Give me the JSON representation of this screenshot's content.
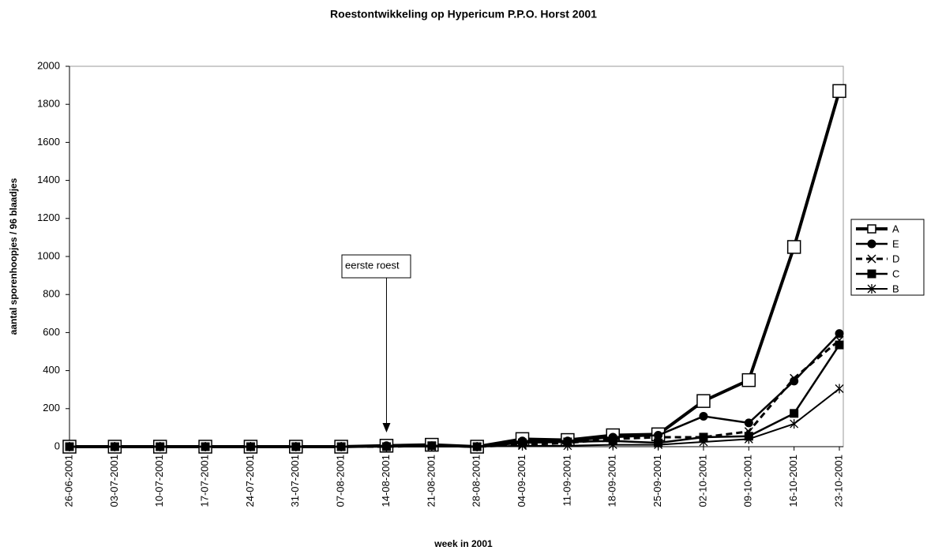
{
  "chart_data": {
    "type": "line",
    "title": "Roestontwikkeling op Hypericum  P.P.O. Horst 2001",
    "x_label": "week in 2001",
    "y_label": "aantal sporenhoopjes / 96 blaadjes",
    "categories": [
      "26-06-2001",
      "03-07-2001",
      "10-07-2001",
      "17-07-2001",
      "24-07-2001",
      "31-07-2001",
      "07-08-2001",
      "14-08-2001",
      "21-08-2001",
      "28-08-2001",
      "04-09-2001",
      "11-09-2001",
      "18-09-2001",
      "25-09-2001",
      "02-10-2001",
      "09-10-2001",
      "16-10-2001",
      "23-10-2001"
    ],
    "ylim": [
      0,
      2000
    ],
    "yticks": [
      0,
      200,
      400,
      600,
      800,
      1000,
      1200,
      1400,
      1600,
      1800,
      2000
    ],
    "grid": false,
    "legend": "right",
    "annotations": [
      {
        "text": "eerste roest",
        "x": "14-08-2001"
      }
    ],
    "series": [
      {
        "name": "A",
        "color": "#000000",
        "marker": "square-open",
        "dash": false,
        "width": 4,
        "values": [
          0,
          0,
          0,
          0,
          0,
          0,
          0,
          5,
          10,
          0,
          40,
          35,
          60,
          65,
          240,
          350,
          1050,
          1870
        ]
      },
      {
        "name": "E",
        "color": "#000000",
        "marker": "circle",
        "dash": false,
        "width": 2.5,
        "values": [
          0,
          0,
          0,
          0,
          0,
          0,
          0,
          5,
          5,
          0,
          30,
          30,
          50,
          60,
          160,
          125,
          345,
          595
        ]
      },
      {
        "name": "D",
        "color": "#000000",
        "marker": "x",
        "dash": true,
        "width": 3,
        "values": [
          0,
          0,
          0,
          0,
          0,
          0,
          0,
          0,
          5,
          0,
          10,
          20,
          40,
          50,
          50,
          80,
          360,
          560
        ]
      },
      {
        "name": "C",
        "color": "#000000",
        "marker": "square",
        "dash": false,
        "width": 2.5,
        "values": [
          0,
          0,
          0,
          0,
          0,
          0,
          0,
          0,
          5,
          0,
          20,
          25,
          30,
          20,
          50,
          55,
          175,
          535
        ]
      },
      {
        "name": "B",
        "color": "#000000",
        "marker": "star",
        "dash": false,
        "width": 2,
        "values": [
          0,
          0,
          0,
          0,
          0,
          0,
          0,
          0,
          0,
          0,
          5,
          5,
          10,
          10,
          25,
          40,
          120,
          305
        ]
      }
    ]
  }
}
